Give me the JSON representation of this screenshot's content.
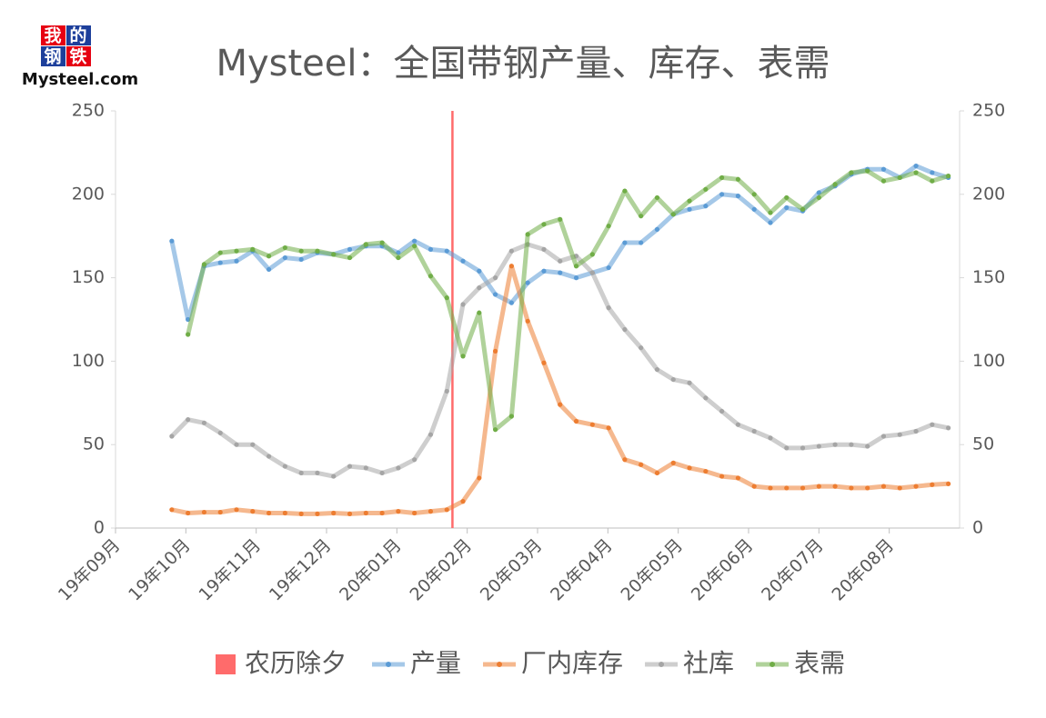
{
  "logo": {
    "chars": [
      "我",
      "的",
      "钢",
      "铁"
    ],
    "text": "Mysteel.com"
  },
  "chart_data": {
    "type": "line",
    "title": "Mysteel：全国带钢产量、库存、表需",
    "x": [
      0.8,
      1.03,
      1.26,
      1.49,
      1.72,
      1.95,
      2.18,
      2.41,
      2.64,
      2.87,
      3.1,
      3.33,
      3.56,
      3.79,
      4.02,
      4.25,
      4.48,
      4.71,
      4.94,
      5.17,
      5.4,
      5.63,
      5.86,
      6.09,
      6.32,
      6.55,
      6.78,
      7.01,
      7.24,
      7.47,
      7.7,
      7.93,
      8.16,
      8.39,
      8.62,
      8.85,
      9.08,
      9.31,
      9.54,
      9.77,
      10.0,
      10.23,
      10.46,
      10.69,
      10.92,
      11.15,
      11.38,
      11.61,
      11.84
    ],
    "xlim": [
      0,
      12
    ],
    "xticks": [
      {
        "value": 0,
        "label": "19年09月"
      },
      {
        "value": 1,
        "label": "19年10月"
      },
      {
        "value": 2,
        "label": "19年11月"
      },
      {
        "value": 3,
        "label": "19年12月"
      },
      {
        "value": 4,
        "label": "20年01月"
      },
      {
        "value": 5,
        "label": "20年02月"
      },
      {
        "value": 6,
        "label": "20年03月"
      },
      {
        "value": 7,
        "label": "20年04月"
      },
      {
        "value": 8,
        "label": "20年05月"
      },
      {
        "value": 9,
        "label": "20年06月"
      },
      {
        "value": 10,
        "label": "20年07月"
      },
      {
        "value": 11,
        "label": "20年08月"
      }
    ],
    "ylim": [
      0,
      250
    ],
    "yticks": [
      0,
      50,
      100,
      150,
      200,
      250
    ],
    "y2lim": [
      0,
      250
    ],
    "y2ticks": [
      0,
      50,
      100,
      150,
      200,
      250
    ],
    "markers": [
      {
        "name": "农历除夕",
        "x": 4.79,
        "color": "#ff6b6b"
      }
    ],
    "series": [
      {
        "name": "产量",
        "color": "#5b9bd5",
        "values": [
          172,
          125,
          157,
          159,
          160,
          166,
          155,
          162,
          161,
          165,
          164,
          167,
          169,
          169,
          165,
          172,
          167,
          166,
          160,
          154,
          140,
          135,
          147,
          154,
          153,
          150,
          153,
          156,
          171,
          171,
          179,
          188,
          191,
          193,
          200,
          199,
          191,
          183,
          192,
          190,
          201,
          205,
          212,
          215,
          215,
          210,
          217,
          213,
          210
        ]
      },
      {
        "name": "厂内库存",
        "color": "#ed7d31",
        "values": [
          11,
          9,
          9.5,
          9.5,
          11,
          10,
          9,
          9,
          8.5,
          8.5,
          9,
          8.5,
          9,
          9,
          10,
          9,
          10,
          11,
          16,
          30,
          106,
          157,
          124,
          99,
          74,
          64,
          62,
          60,
          41,
          38,
          33,
          39,
          36,
          34,
          31,
          30,
          25,
          24,
          24,
          24,
          25,
          25,
          24,
          24,
          25,
          24,
          25,
          26,
          26.5
        ]
      },
      {
        "name": "社库",
        "color": "#a5a5a5",
        "values": [
          55,
          65,
          63,
          57,
          50,
          50,
          43,
          37,
          33,
          33,
          31,
          37,
          36,
          33,
          36,
          41,
          56,
          82,
          134,
          144,
          150,
          166,
          170,
          167,
          160,
          163,
          153,
          132,
          119,
          108,
          95,
          89,
          87,
          78,
          70,
          62,
          58,
          54,
          48,
          48,
          49,
          50,
          50,
          49,
          55,
          56,
          58,
          62,
          60
        ]
      },
      {
        "name": "表需",
        "color": "#70ad47",
        "values": [
          null,
          116,
          158,
          165,
          166,
          167,
          163,
          168,
          166,
          166,
          164,
          162,
          170,
          171,
          162,
          169,
          151,
          138,
          103,
          129,
          59,
          67,
          176,
          182,
          185,
          157,
          164,
          181,
          202,
          187,
          198,
          188,
          196,
          203,
          210,
          209,
          200,
          189,
          198,
          191,
          198,
          206,
          213,
          214,
          208,
          210,
          213,
          208,
          211
        ]
      }
    ]
  }
}
